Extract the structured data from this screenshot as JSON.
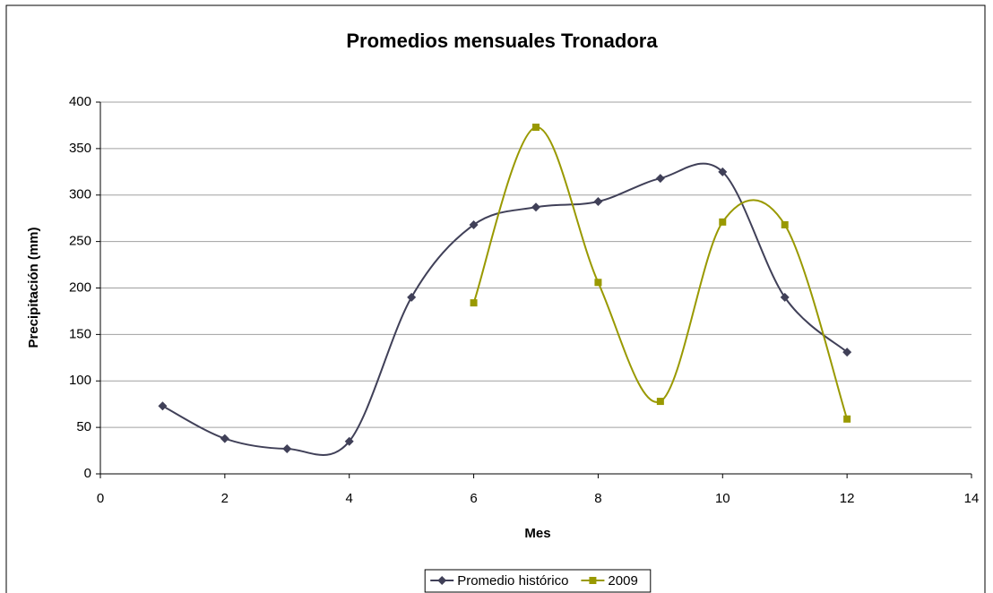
{
  "chart_data": {
    "type": "line",
    "title": "Promedios mensuales Tronadora",
    "x_label": "Mes",
    "y_label": "Precipitación (mm)",
    "xlim": [
      0,
      14
    ],
    "xticks": [
      0,
      2,
      4,
      6,
      8,
      10,
      12,
      14
    ],
    "ylim": [
      0,
      400
    ],
    "yticks": [
      0,
      50,
      100,
      150,
      200,
      250,
      300,
      350,
      400
    ],
    "grid": true,
    "smooth": true,
    "legend": "bottom",
    "series": [
      {
        "name": "Promedio histórico",
        "color": "#404058",
        "marker": "diamond",
        "x": [
          1,
          2,
          3,
          4,
          5,
          6,
          7,
          8,
          9,
          10,
          11,
          12
        ],
        "values": [
          73,
          38,
          27,
          35,
          190,
          268,
          287,
          293,
          318,
          325,
          190,
          131
        ]
      },
      {
        "name": "2009",
        "color": "#999900",
        "marker": "square",
        "x": [
          6,
          7,
          8,
          9,
          10,
          11,
          12
        ],
        "values": [
          184,
          373,
          206,
          78,
          271,
          268,
          59
        ]
      }
    ]
  }
}
